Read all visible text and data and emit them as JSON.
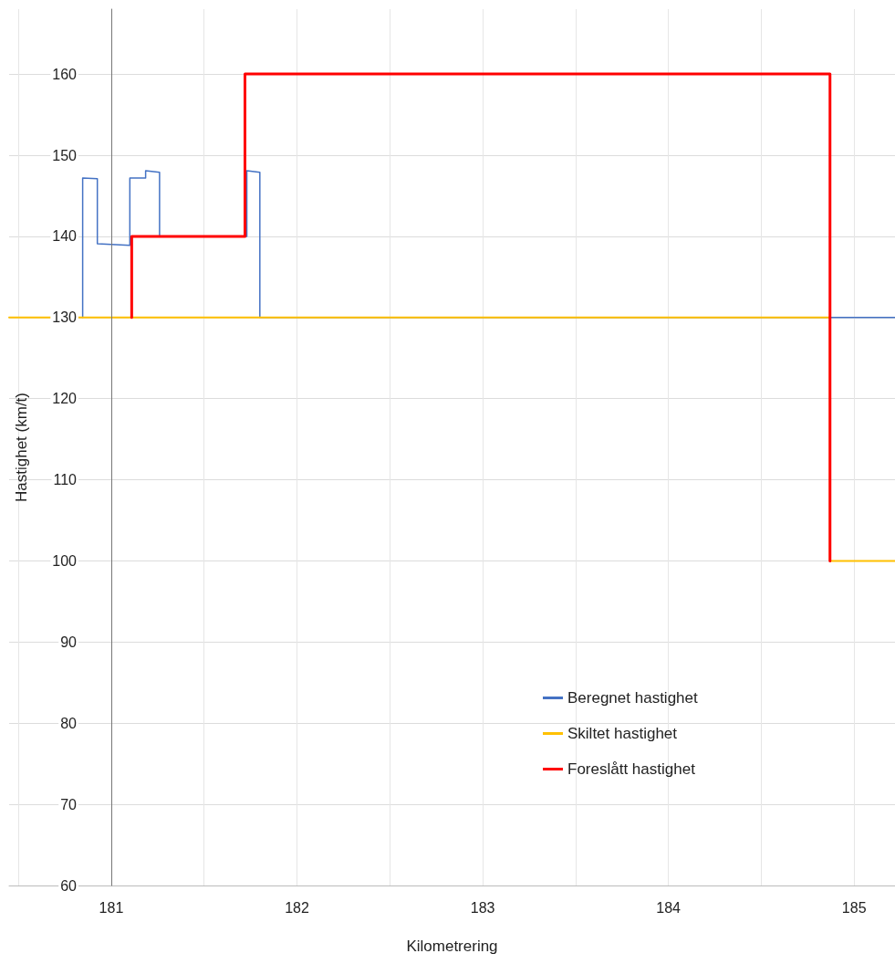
{
  "chart_data": {
    "type": "line",
    "xlabel": "Kilometrering",
    "ylabel": "Hastighet (km/t)",
    "xlim": [
      180.45,
      185.22
    ],
    "ylim": [
      60,
      168
    ],
    "xticks": [
      {
        "value": 180.5,
        "label": null
      },
      181,
      {
        "value": 181.5,
        "label": null
      },
      182,
      {
        "value": 182.5,
        "label": null
      },
      183,
      {
        "value": 183.5,
        "label": null
      },
      184,
      {
        "value": 184.5,
        "label": null
      },
      185
    ],
    "yticks": [
      60,
      70,
      80,
      90,
      100,
      110,
      120,
      130,
      140,
      150,
      160
    ],
    "grid": true,
    "legend": "bottom right",
    "marker": "none",
    "line_style": "solid",
    "series": [
      {
        "name": "Beregnet hastighet",
        "color": "#4472c4",
        "x": [
          180.846,
          180.846,
          180.925,
          180.925,
          181.1,
          181.1,
          181.185,
          181.185,
          181.26,
          181.26,
          181.73,
          181.73,
          181.8,
          181.8,
          185.22
        ],
        "values": [
          130,
          147.2,
          147.1,
          139.1,
          138.9,
          147.2,
          147.2,
          148.1,
          147.9,
          140,
          140,
          148.1,
          147.9,
          130,
          130
        ]
      },
      {
        "name": "Skiltet hastighet",
        "color": "#ffc000",
        "x": [
          180.45,
          184.87,
          184.87,
          185.22
        ],
        "values": [
          130,
          130,
          100,
          100
        ]
      },
      {
        "name": "Foreslått hastighet",
        "color": "#ff0000",
        "x": [
          181.11,
          181.11,
          181.72,
          181.72,
          184.87,
          184.87
        ],
        "values": [
          130,
          140,
          140,
          160,
          160,
          100
        ]
      }
    ]
  }
}
